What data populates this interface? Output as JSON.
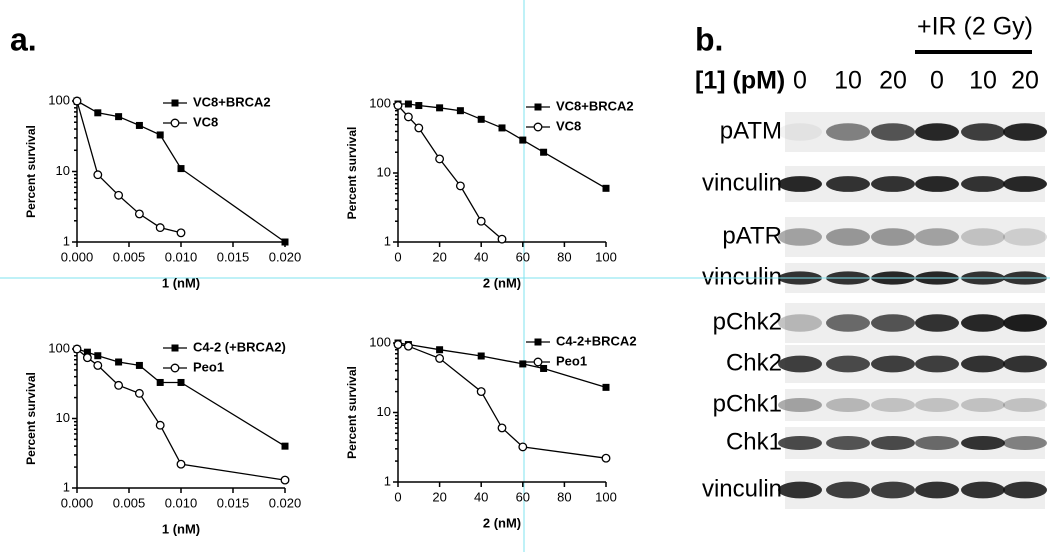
{
  "panels": [
    "a.",
    "b."
  ],
  "chart_data": [
    {
      "type": "line",
      "log_y": true,
      "xlabel": "1 (nM)",
      "ylabel": "Percent survival",
      "xlim": [
        0,
        0.02
      ],
      "xticks": [
        {
          "value": 0,
          "label": "0.000"
        },
        {
          "value": 0.005,
          "label": "0.005"
        },
        {
          "value": 0.01,
          "label": "0.010"
        },
        {
          "value": 0.015,
          "label": "0.015"
        },
        {
          "value": 0.02,
          "label": "0.020"
        }
      ],
      "ylim": [
        1,
        100
      ],
      "yticks": [
        1,
        10,
        100
      ],
      "series": [
        {
          "name": "VC8+BRCA2",
          "color": "#000000",
          "marker": "square",
          "x": [
            0,
            0.002,
            0.004,
            0.006,
            0.008,
            0.01,
            0.02
          ],
          "values": [
            100,
            68,
            60,
            45,
            33,
            11,
            1
          ]
        },
        {
          "name": "VC8",
          "color": "#000000",
          "marker": "circle",
          "x": [
            0,
            0.002,
            0.004,
            0.006,
            0.008,
            0.01
          ],
          "values": [
            100,
            9,
            4.6,
            2.5,
            1.6,
            1.35
          ]
        }
      ]
    },
    {
      "type": "line",
      "log_y": true,
      "xlabel": "2 (nM)",
      "ylabel": "Percent survival",
      "xlim": [
        0,
        100
      ],
      "xticks": [
        0,
        20,
        40,
        60,
        80,
        100
      ],
      "ylim": [
        1,
        100
      ],
      "yticks": [
        1,
        10,
        100
      ],
      "series": [
        {
          "name": "VC8+BRCA2",
          "color": "#000000",
          "marker": "square",
          "x": [
            0,
            5,
            10,
            20,
            30,
            40,
            50,
            60,
            70,
            100
          ],
          "values": [
            100,
            100,
            95,
            88,
            80,
            60,
            45,
            30,
            20,
            6
          ]
        },
        {
          "name": "VC8",
          "color": "#000000",
          "marker": "circle",
          "x": [
            0,
            5,
            10,
            20,
            30,
            40,
            50
          ],
          "values": [
            95,
            65,
            45,
            16,
            6.5,
            2,
            1.1
          ]
        }
      ]
    },
    {
      "type": "line",
      "log_y": true,
      "xlabel": "1 (nM)",
      "ylabel": "Percent survival",
      "xlim": [
        0,
        0.02
      ],
      "xticks": [
        {
          "value": 0,
          "label": "0.000"
        },
        {
          "value": 0.005,
          "label": "0.005"
        },
        {
          "value": 0.01,
          "label": "0.010"
        },
        {
          "value": 0.015,
          "label": "0.015"
        },
        {
          "value": 0.02,
          "label": "0.020"
        }
      ],
      "ylim": [
        1,
        100
      ],
      "yticks": [
        1,
        10,
        100
      ],
      "series": [
        {
          "name": "C4-2 (+BRCA2)",
          "color": "#000000",
          "marker": "square",
          "x": [
            0,
            0.001,
            0.002,
            0.004,
            0.006,
            0.008,
            0.01,
            0.02
          ],
          "values": [
            100,
            90,
            80,
            65,
            58,
            33,
            33,
            4
          ]
        },
        {
          "name": "Peo1",
          "color": "#000000",
          "marker": "circle",
          "x": [
            0,
            0.001,
            0.002,
            0.004,
            0.006,
            0.008,
            0.01,
            0.02
          ],
          "values": [
            100,
            75,
            58,
            30,
            23,
            8,
            2.2,
            1.3
          ]
        }
      ]
    },
    {
      "type": "line",
      "log_y": true,
      "xlabel": "2 (nM)",
      "ylabel": "Percent survival",
      "xlim": [
        0,
        100
      ],
      "xticks": [
        0,
        20,
        40,
        60,
        80,
        100
      ],
      "ylim": [
        1,
        100
      ],
      "yticks": [
        1,
        10,
        100
      ],
      "series": [
        {
          "name": "C4-2+BRCA2",
          "color": "#000000",
          "marker": "square",
          "x": [
            0,
            5,
            20,
            40,
            60,
            70,
            100
          ],
          "values": [
            100,
            95,
            80,
            65,
            50,
            43,
            23
          ]
        },
        {
          "name": "Peo1",
          "color": "#000000",
          "marker": "circle",
          "x": [
            0,
            5,
            20,
            40,
            50,
            60,
            100
          ],
          "values": [
            95,
            90,
            60,
            20,
            6,
            3.2,
            2.2
          ]
        }
      ]
    }
  ],
  "blot": {
    "header": "+IR (2 Gy)",
    "dose_label": "[1] (pM)",
    "lanes": [
      "0",
      "10",
      "20",
      "0",
      "10",
      "20"
    ],
    "rows": [
      "pATM",
      "vinculin",
      "pATR",
      "vinculin",
      "pChk2",
      "Chk2",
      "pChk1",
      "Chk1",
      "vinculin"
    ]
  }
}
